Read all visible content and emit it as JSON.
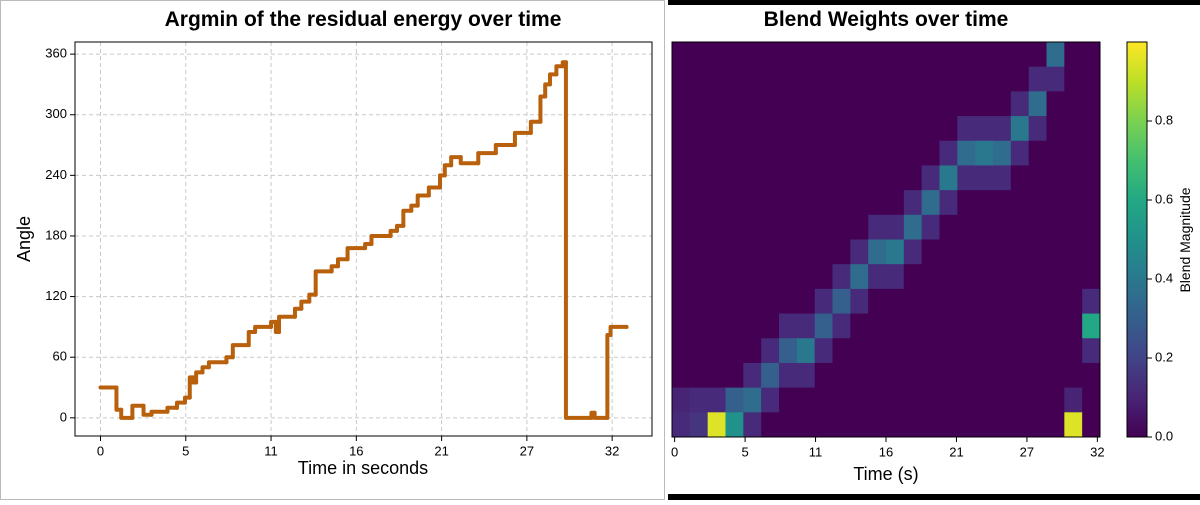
{
  "chart_data": [
    {
      "type": "line",
      "title": "Argmin of the residual energy over time",
      "xlabel": "Time in seconds",
      "ylabel": "Angle",
      "drawstyle": "steps-post",
      "color": "#b8600c",
      "grid": true,
      "x": [
        0,
        1.0,
        1.3,
        2.0,
        2.7,
        3.2,
        4.2,
        4.8,
        5.3,
        5.6,
        5.8,
        6.0,
        6.4,
        6.8,
        7.9,
        8.3,
        9.3,
        9.7,
        10.7,
        11.0,
        11.2,
        12.2,
        12.6,
        13.1,
        13.5,
        14.5,
        14.9,
        15.5,
        16.6,
        17.0,
        18.2,
        18.6,
        19.0,
        19.5,
        19.9,
        20.6,
        21.3,
        21.6,
        22.0,
        22.6,
        23.7,
        24.8,
        26.0,
        27.0,
        27.6,
        27.9,
        28.2,
        28.6,
        29.0,
        29.2,
        30.8,
        31.0,
        31.8,
        32.0,
        33.0
      ],
      "values": [
        30,
        8,
        0,
        12,
        3,
        6,
        10,
        15,
        20,
        40,
        35,
        45,
        50,
        55,
        60,
        72,
        85,
        90,
        95,
        85,
        100,
        108,
        115,
        122,
        145,
        150,
        157,
        168,
        172,
        180,
        185,
        190,
        205,
        210,
        220,
        228,
        240,
        250,
        258,
        252,
        262,
        270,
        282,
        293,
        318,
        330,
        340,
        348,
        352,
        0,
        5,
        0,
        82,
        90,
        90
      ],
      "xlim": [
        -1.6,
        34.6
      ],
      "xticks": [
        0,
        {
          "value": 5.35,
          "label": "5"
        },
        {
          "value": 10.7,
          "label": "11"
        },
        {
          "value": 16.05,
          "label": "16"
        },
        {
          "value": 21.4,
          "label": "21"
        },
        {
          "value": 26.75,
          "label": "27"
        },
        {
          "value": 32.1,
          "label": "32"
        }
      ],
      "ylim": [
        -18,
        372
      ],
      "yticks": [
        0,
        60,
        120,
        180,
        240,
        300,
        360
      ]
    },
    {
      "type": "heatmap",
      "title": "Blend Weights over time",
      "xlabel": "Time (s)",
      "colorbar_label": "Blend Magnitude",
      "colormap": "viridis",
      "xlim": [
        -0.2,
        32.3
      ],
      "xticks": [
        0,
        {
          "value": 5.35,
          "label": "5"
        },
        {
          "value": 10.7,
          "label": "11"
        },
        {
          "value": 16.05,
          "label": "16"
        },
        {
          "value": 21.4,
          "label": "21"
        },
        {
          "value": 26.75,
          "label": "27"
        },
        {
          "value": 32.1,
          "label": "32"
        }
      ],
      "ylim": [
        0,
        360
      ],
      "zlim": [
        0,
        1
      ],
      "zticks": [
        {
          "value": 0,
          "label": "0.0"
        },
        0.2,
        0.4,
        0.6,
        0.8
      ],
      "z": [
        [
          0,
          0,
          0,
          0,
          0,
          0,
          0,
          0,
          0,
          0,
          0,
          0,
          0,
          0,
          0,
          0,
          0,
          0,
          0,
          0,
          0,
          0.35,
          0,
          0
        ],
        [
          0,
          0,
          0,
          0,
          0,
          0,
          0,
          0,
          0,
          0,
          0,
          0,
          0,
          0,
          0,
          0,
          0,
          0,
          0,
          0,
          0.12,
          0.12,
          0,
          0
        ],
        [
          0,
          0,
          0,
          0,
          0,
          0,
          0,
          0,
          0,
          0,
          0,
          0,
          0,
          0,
          0,
          0,
          0,
          0,
          0,
          0.12,
          0.35,
          0,
          0,
          0
        ],
        [
          0,
          0,
          0,
          0,
          0,
          0,
          0,
          0,
          0,
          0,
          0,
          0,
          0,
          0,
          0,
          0,
          0.12,
          0.12,
          0.12,
          0.4,
          0.12,
          0,
          0,
          0
        ],
        [
          0,
          0,
          0,
          0,
          0,
          0,
          0,
          0,
          0,
          0,
          0,
          0,
          0,
          0,
          0,
          0.12,
          0.35,
          0.4,
          0.35,
          0.12,
          0,
          0,
          0,
          0
        ],
        [
          0,
          0,
          0,
          0,
          0,
          0,
          0,
          0,
          0,
          0,
          0,
          0,
          0,
          0,
          0.12,
          0.4,
          0.12,
          0.12,
          0.12,
          0,
          0,
          0,
          0,
          0
        ],
        [
          0,
          0,
          0,
          0,
          0,
          0,
          0,
          0,
          0,
          0,
          0,
          0,
          0,
          0.12,
          0.35,
          0.12,
          0,
          0,
          0,
          0,
          0,
          0,
          0,
          0
        ],
        [
          0,
          0,
          0,
          0,
          0,
          0,
          0,
          0,
          0,
          0,
          0,
          0.12,
          0.12,
          0.35,
          0.12,
          0,
          0,
          0,
          0,
          0,
          0,
          0,
          0,
          0
        ],
        [
          0,
          0,
          0,
          0,
          0,
          0,
          0,
          0,
          0,
          0,
          0.12,
          0.35,
          0.4,
          0.12,
          0,
          0,
          0,
          0,
          0,
          0,
          0,
          0,
          0,
          0
        ],
        [
          0,
          0,
          0,
          0,
          0,
          0,
          0,
          0,
          0,
          0.12,
          0.35,
          0.12,
          0.12,
          0,
          0,
          0,
          0,
          0,
          0,
          0,
          0,
          0,
          0,
          0
        ],
        [
          0,
          0,
          0,
          0,
          0,
          0,
          0,
          0,
          0.12,
          0.3,
          0.12,
          0,
          0,
          0,
          0,
          0,
          0,
          0,
          0,
          0,
          0,
          0,
          0,
          0.12
        ],
        [
          0,
          0,
          0,
          0,
          0,
          0,
          0.12,
          0.12,
          0.3,
          0.12,
          0,
          0,
          0,
          0,
          0,
          0,
          0,
          0,
          0,
          0,
          0,
          0,
          0,
          0.6
        ],
        [
          0,
          0,
          0,
          0,
          0,
          0.12,
          0.3,
          0.4,
          0.12,
          0,
          0,
          0,
          0,
          0,
          0,
          0,
          0,
          0,
          0,
          0,
          0,
          0,
          0,
          0.12
        ],
        [
          0,
          0,
          0,
          0,
          0.12,
          0.3,
          0.12,
          0.12,
          0,
          0,
          0,
          0,
          0,
          0,
          0,
          0,
          0,
          0,
          0,
          0,
          0,
          0,
          0,
          0
        ],
        [
          0.1,
          0.12,
          0.12,
          0.3,
          0.35,
          0.12,
          0,
          0,
          0,
          0,
          0,
          0,
          0,
          0,
          0,
          0,
          0,
          0,
          0,
          0,
          0,
          0,
          0.1,
          0
        ],
        [
          0.12,
          0.15,
          0.95,
          0.5,
          0.12,
          0,
          0,
          0,
          0,
          0,
          0,
          0,
          0,
          0,
          0,
          0,
          0,
          0,
          0,
          0,
          0,
          0,
          0.95,
          0
        ]
      ]
    }
  ]
}
